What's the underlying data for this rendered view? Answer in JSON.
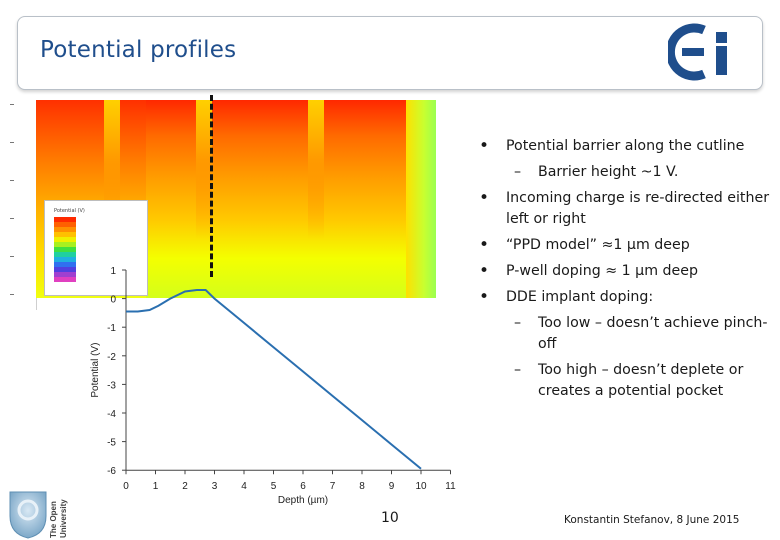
{
  "title": "Potential profiles",
  "logo_text": "ei",
  "simulation": {
    "legend_title": "Potential (V)"
  },
  "bullets": [
    {
      "text": "Potential barrier along the cutline",
      "subs": [
        "Barrier height ~1 V."
      ]
    },
    {
      "text": "Incoming charge is re-directed either left or right",
      "subs": []
    },
    {
      "text": "“PPD model” ≈1 µm deep",
      "subs": []
    },
    {
      "text": "P-well doping ≈ 1 µm deep",
      "subs": []
    },
    {
      "text": "DDE implant doping:",
      "subs": [
        "Too low – doesn’t achieve pinch-off",
        "Too high – doesn’t deplete or creates a potential pocket"
      ]
    }
  ],
  "footer": {
    "page_number": "10",
    "credit": "Konstantin Stefanov, 8 June 2015",
    "university": "The Open University"
  },
  "colors": {
    "title": "#1f4e8c",
    "curve": "#2a6fb0",
    "logo": "#1f4e8c"
  },
  "chart_data": {
    "type": "line",
    "xlabel": "Depth (µm)",
    "ylabel": "Potential (V)",
    "xlim": [
      0,
      11
    ],
    "ylim": [
      -6,
      1
    ],
    "x_ticks": [
      0,
      1,
      2,
      3,
      4,
      5,
      6,
      7,
      8,
      9,
      10,
      11
    ],
    "y_ticks": [
      1,
      0,
      -1,
      -2,
      -3,
      -4,
      -5,
      -6
    ],
    "series": [
      {
        "x": [
          0,
          0.4,
          0.8,
          1.1,
          1.5,
          2.0,
          2.4,
          2.7,
          3.0,
          4.0,
          5.0,
          6.0,
          7.0,
          8.0,
          9.0,
          10.0
        ],
        "y": [
          -0.45,
          -0.45,
          -0.4,
          -0.25,
          0.0,
          0.25,
          0.3,
          0.3,
          0.0,
          -0.85,
          -1.7,
          -2.55,
          -3.4,
          -4.25,
          -5.1,
          -5.95
        ]
      }
    ]
  }
}
